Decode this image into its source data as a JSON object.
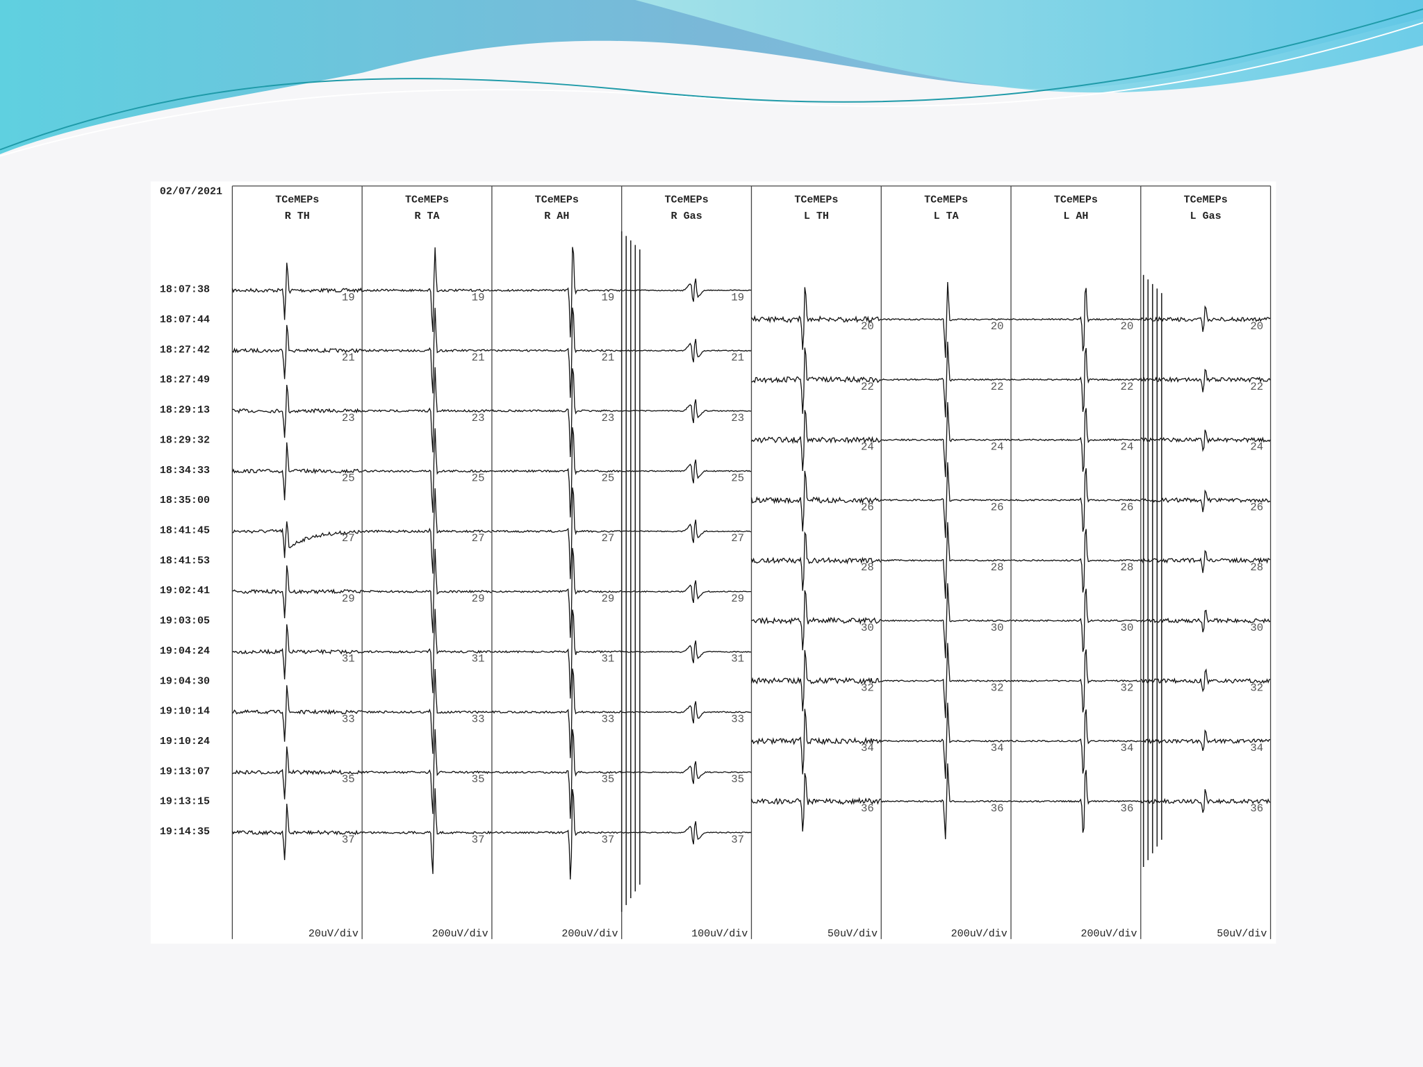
{
  "document": {
    "date": "02/07/2021",
    "timestamps": [
      "18:07:38",
      "18:07:44",
      "18:27:42",
      "18:27:49",
      "18:29:13",
      "18:29:32",
      "18:34:33",
      "18:35:00",
      "18:41:45",
      "18:41:53",
      "19:02:41",
      "19:03:05",
      "19:04:24",
      "19:04:30",
      "19:10:14",
      "19:10:24",
      "19:13:07",
      "19:13:15",
      "19:14:35"
    ],
    "columns": [
      {
        "title": "TCeMEPs",
        "channel": "R TH",
        "scale": "20uV/div",
        "traces": [
          19,
          21,
          23,
          25,
          27,
          29,
          31,
          33,
          35,
          37
        ]
      },
      {
        "title": "TCeMEPs",
        "channel": "R TA",
        "scale": "200uV/div",
        "traces": [
          19,
          21,
          23,
          25,
          27,
          29,
          31,
          33,
          35,
          37
        ]
      },
      {
        "title": "TCeMEPs",
        "channel": "R AH",
        "scale": "200uV/div",
        "traces": [
          19,
          21,
          23,
          25,
          27,
          29,
          31,
          33,
          35,
          37
        ]
      },
      {
        "title": "TCeMEPs",
        "channel": "R Gas",
        "scale": "100uV/div",
        "traces": [
          19,
          21,
          23,
          25,
          27,
          29,
          31,
          33,
          35,
          37
        ]
      },
      {
        "title": "TCeMEPs",
        "channel": "L TH",
        "scale": "50uV/div",
        "traces": [
          20,
          22,
          24,
          26,
          28,
          30,
          32,
          34,
          36
        ]
      },
      {
        "title": "TCeMEPs",
        "channel": "L TA",
        "scale": "200uV/div",
        "traces": [
          20,
          22,
          24,
          26,
          28,
          30,
          32,
          34,
          36
        ]
      },
      {
        "title": "TCeMEPs",
        "channel": "L AH",
        "scale": "200uV/div",
        "traces": [
          20,
          22,
          24,
          26,
          28,
          30,
          32,
          34,
          36
        ]
      },
      {
        "title": "TCeMEPs",
        "channel": "L Gas",
        "scale": "50uV/div",
        "traces": [
          20,
          22,
          24,
          26,
          28,
          30,
          32,
          34,
          36
        ]
      }
    ]
  }
}
